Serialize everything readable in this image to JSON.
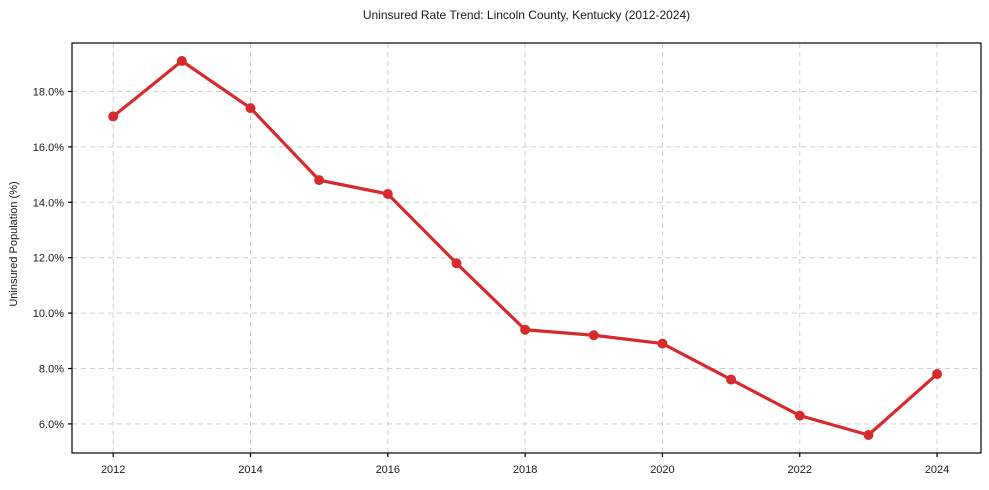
{
  "chart_data": {
    "type": "line",
    "title": "Uninsured Rate Trend: Lincoln County, Kentucky (2012-2024)",
    "xlabel": "",
    "ylabel": "Uninsured Population (%)",
    "x": [
      2012,
      2013,
      2014,
      2015,
      2016,
      2017,
      2018,
      2019,
      2020,
      2021,
      2022,
      2023,
      2024
    ],
    "series": [
      {
        "name": "Uninsured rate",
        "values": [
          17.1,
          19.1,
          17.4,
          14.8,
          14.3,
          11.8,
          9.4,
          9.2,
          8.9,
          7.6,
          6.3,
          5.6,
          7.8
        ],
        "color": "#d62b2e",
        "marker": "circle",
        "marker_radius": 5,
        "line_width": 3.2
      }
    ],
    "xticks": {
      "values": [
        2012,
        2014,
        2016,
        2018,
        2020,
        2022,
        2024
      ],
      "labels": [
        "2012",
        "2014",
        "2016",
        "2018",
        "2020",
        "2022",
        "2024"
      ]
    },
    "yticks": {
      "values": [
        6,
        8,
        10,
        12,
        14,
        16,
        18
      ],
      "labels": [
        "6.0%",
        "8.0%",
        "10.0%",
        "12.0%",
        "14.0%",
        "16.0%",
        "18.0%"
      ]
    },
    "xlim": [
      2011.4,
      2024.64
    ],
    "ylim": [
      4.95,
      19.75
    ],
    "grid": true,
    "grid_style": "dashed",
    "legend_position": "none",
    "styles": {
      "line_color": "#d62b2e",
      "grid_color": "#cfcfcf",
      "axis_color": "#000000",
      "text_color": "#1a1a1a",
      "background": "#ffffff"
    }
  }
}
